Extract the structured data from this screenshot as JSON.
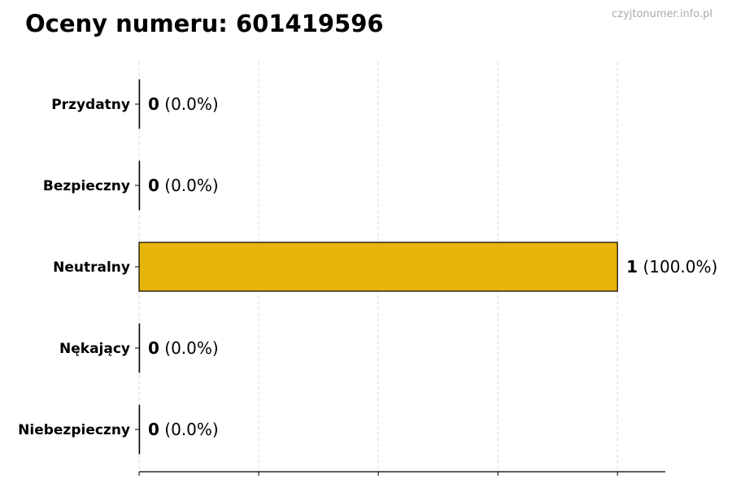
{
  "title": "Oceny numeru: 601419596",
  "watermark": "czyjtonumer.info.pl",
  "chart_data": {
    "type": "bar",
    "orientation": "horizontal",
    "title": "Oceny numeru: 601419596",
    "categories": [
      "Przydatny",
      "Bezpieczny",
      "Neutralny",
      "Nękający",
      "Niebezpieczny"
    ],
    "values": [
      0,
      0,
      1,
      0,
      0
    ],
    "percent_labels": [
      "(0.0%)",
      "(0.0%)",
      "(100.0%)",
      "(0.0%)",
      "(0.0%)"
    ],
    "bar_color": "#E8B40A",
    "xlim": [
      0,
      1.1
    ],
    "xticks": [
      0,
      0.25,
      0.5,
      0.75,
      1.0
    ],
    "xtick_labels_shown": false,
    "grid": "x, dashed",
    "xlabel": "",
    "ylabel": ""
  }
}
